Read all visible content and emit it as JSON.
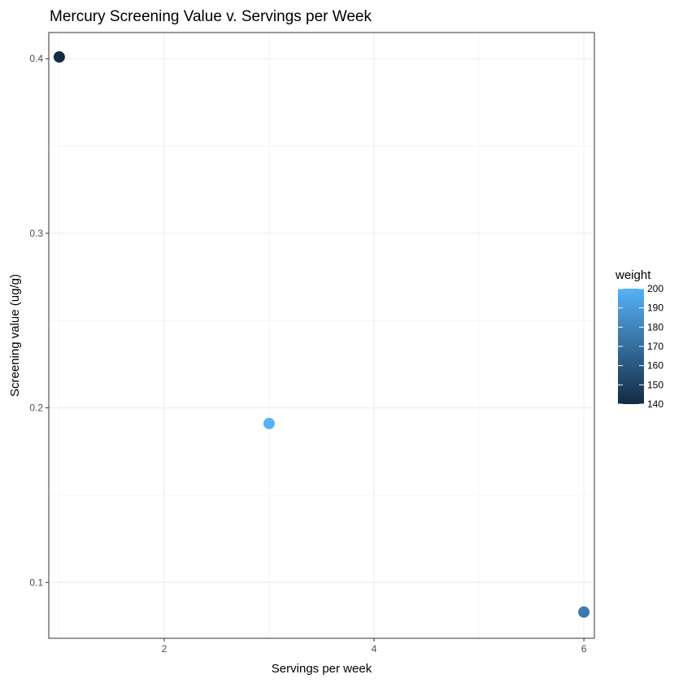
{
  "chart_data": {
    "type": "scatter",
    "title": "Mercury Screening Value v. Servings per Week",
    "xlabel": "Servings per week",
    "ylabel": "Screening value (ug/g)",
    "xlim": [
      0.9,
      6.1
    ],
    "ylim": [
      0.068,
      0.415
    ],
    "x_ticks": [
      2,
      4,
      6
    ],
    "y_ticks": [
      0.1,
      0.2,
      0.3,
      0.4
    ],
    "grid": true,
    "points": [
      {
        "x": 1,
        "y": 0.401,
        "weight": 140
      },
      {
        "x": 3,
        "y": 0.191,
        "weight": 200
      },
      {
        "x": 6,
        "y": 0.083,
        "weight": 176
      }
    ],
    "legend": {
      "title": "weight",
      "position": "right",
      "ticks": [
        140,
        150,
        160,
        170,
        180,
        190,
        200
      ],
      "color_low": "#132B43",
      "color_high": "#56B1F7"
    }
  }
}
